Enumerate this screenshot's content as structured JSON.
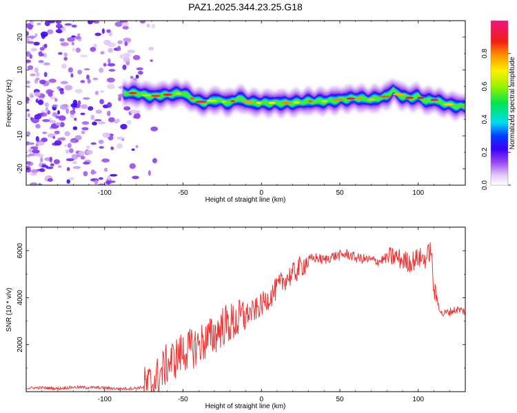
{
  "title": "PAZ1.2025.344.23.25.G18",
  "chart_data": [
    {
      "type": "heatmap",
      "xlabel": "Height of straight line (km)",
      "ylabel": "Frequency (Hz)",
      "xlim": [
        -150,
        130
      ],
      "ylim": [
        -25,
        25
      ],
      "xticks": [
        -100,
        -50,
        0,
        50,
        100
      ],
      "yticks": [
        -20,
        -10,
        0,
        10,
        20
      ],
      "colorbar": {
        "label": "Normalized spectral amplitude",
        "range": [
          0,
          1
        ],
        "ticks": [
          0.0,
          0.2,
          0.4,
          0.6,
          0.8
        ],
        "tick_labels": [
          "0.0",
          "0.2",
          "0.4",
          "0.6",
          "0.8"
        ]
      },
      "noise_region": {
        "x_range": [
          -150,
          -72
        ],
        "description_values": "scattered low amplitude (0.05-0.25) blobs across all frequencies"
      },
      "ridge": {
        "x": [
          -88,
          -80,
          -70,
          -60,
          -50,
          -45,
          -40,
          -35,
          -30,
          -25,
          -20,
          -15,
          -10,
          -5,
          0,
          10,
          20,
          30,
          40,
          50,
          60,
          70,
          75,
          80,
          84,
          86,
          90,
          95,
          100,
          105,
          110,
          115,
          120,
          125,
          130
        ],
        "freq_hz": [
          3,
          3,
          2,
          2.5,
          3,
          1.5,
          0.5,
          0,
          1,
          0.5,
          0,
          1.5,
          0.5,
          0,
          0,
          0,
          0,
          0.5,
          0.5,
          1,
          1.5,
          1,
          1.5,
          2,
          4,
          3,
          2,
          1.5,
          2,
          0.5,
          1,
          0,
          -0.5,
          -1,
          -1
        ],
        "peak_amplitude": 1.0
      }
    },
    {
      "type": "line",
      "xlabel": "Height of straight line (km)",
      "ylabel": "SNR (10 * v/v)",
      "xlim": [
        -150,
        130
      ],
      "ylim": [
        0,
        7000
      ],
      "xticks": [
        -100,
        -50,
        0,
        50,
        100
      ],
      "yticks": [
        2000,
        4000,
        6000
      ],
      "series": [
        {
          "name": "SNR",
          "color": "#ee3333",
          "x": [
            -150,
            -140,
            -130,
            -120,
            -110,
            -100,
            -90,
            -80,
            -75,
            -70,
            -65,
            -60,
            -55,
            -50,
            -45,
            -40,
            -35,
            -30,
            -25,
            -20,
            -15,
            -10,
            -5,
            0,
            5,
            10,
            15,
            20,
            25,
            30,
            35,
            40,
            45,
            50,
            55,
            60,
            65,
            70,
            75,
            80,
            85,
            90,
            95,
            100,
            105,
            108,
            110,
            112,
            115,
            120,
            125,
            130
          ],
          "y": [
            150,
            170,
            130,
            190,
            180,
            160,
            120,
            150,
            200,
            350,
            700,
            1200,
            1400,
            1700,
            1800,
            2000,
            2200,
            2400,
            2800,
            2900,
            3000,
            3300,
            3400,
            3700,
            4000,
            4400,
            4800,
            5000,
            5300,
            5600,
            5700,
            5600,
            5750,
            5800,
            5850,
            5700,
            5650,
            5600,
            5550,
            5700,
            5750,
            5600,
            5500,
            5700,
            5650,
            6100,
            4300,
            3900,
            3300,
            3400,
            3500,
            3400
          ]
        }
      ]
    }
  ]
}
